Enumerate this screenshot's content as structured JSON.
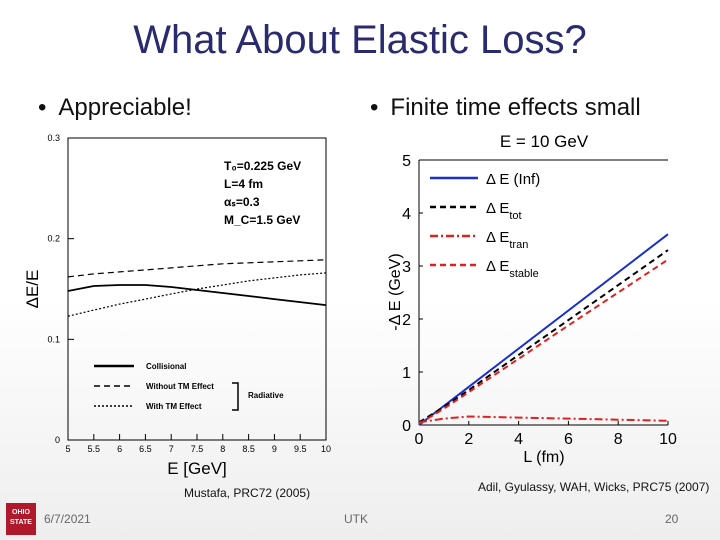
{
  "slide": {
    "title": "What About Elastic Loss?",
    "bullet_left": "Appreciable!",
    "bullet_right": "Finite time effects small",
    "cite_left": "Mustafa, PRC72 (2005)",
    "cite_right": "Adil, Gyulassy, WAH, Wicks, PRC75 (2007)",
    "footer_date": "6/7/2021",
    "footer_center": "UTK",
    "footer_page": "20",
    "logo_text": [
      "OHIO",
      "STATE"
    ]
  },
  "chart_data": [
    {
      "type": "line",
      "xlabel": "E [GeV]",
      "ylabel": "ΔE/E",
      "xlim": [
        5,
        10
      ],
      "ylim": [
        0,
        0.3
      ],
      "x_ticks": [
        "5",
        "5.5",
        "6",
        "6.5",
        "7",
        "7.5",
        "8",
        "8.5",
        "9",
        "9.5",
        "10"
      ],
      "y_ticks": [
        "0",
        "0.1",
        "0.2",
        "0.3"
      ],
      "params": [
        "T₀=0.225 GeV",
        "L=4 fm",
        "αₛ=0.3",
        "M_C=1.5 GeV"
      ],
      "legend": [
        "Collisional",
        "Without TM Effect",
        "With TM Effect"
      ],
      "legend_group_label": "Radiative",
      "series": [
        {
          "name": "Collisional",
          "style": "solid",
          "color": "#000000",
          "x": [
            5,
            5.5,
            6,
            6.5,
            7,
            7.5,
            8,
            8.5,
            9,
            9.5,
            10
          ],
          "y": [
            0.148,
            0.153,
            0.154,
            0.154,
            0.152,
            0.149,
            0.146,
            0.143,
            0.14,
            0.137,
            0.134
          ]
        },
        {
          "name": "Without TM Effect",
          "style": "dashed",
          "color": "#000000",
          "x": [
            5,
            5.5,
            6,
            6.5,
            7,
            7.5,
            8,
            8.5,
            9,
            9.5,
            10
          ],
          "y": [
            0.162,
            0.165,
            0.167,
            0.169,
            0.171,
            0.173,
            0.175,
            0.176,
            0.177,
            0.178,
            0.179
          ]
        },
        {
          "name": "With TM Effect",
          "style": "dotted",
          "color": "#000000",
          "x": [
            5,
            5.5,
            6,
            6.5,
            7,
            7.5,
            8,
            8.5,
            9,
            9.5,
            10
          ],
          "y": [
            0.123,
            0.129,
            0.135,
            0.14,
            0.145,
            0.15,
            0.154,
            0.158,
            0.161,
            0.164,
            0.166
          ]
        }
      ]
    },
    {
      "type": "line",
      "title": "E = 10 GeV",
      "xlabel": "L (fm)",
      "ylabel": "-Δ E (GeV)",
      "xlim": [
        0,
        10
      ],
      "ylim": [
        0,
        5
      ],
      "x_ticks": [
        "0",
        "2",
        "4",
        "6",
        "8",
        "10"
      ],
      "y_ticks": [
        "0",
        "1",
        "2",
        "3",
        "4",
        "5"
      ],
      "legend": [
        {
          "main": "Δ E",
          "suffix": "(Inf)",
          "sub": ""
        },
        {
          "main": "Δ E",
          "suffix": "",
          "sub": "tot"
        },
        {
          "main": "Δ E",
          "suffix": "",
          "sub": "tran"
        },
        {
          "main": "Δ E",
          "suffix": "",
          "sub": "stable"
        }
      ],
      "series": [
        {
          "name": "Δ E (Inf)",
          "style": "solid",
          "color": "#1a2ecc",
          "x": [
            0,
            10
          ],
          "y": [
            0,
            3.6
          ]
        },
        {
          "name": "Δ E tot",
          "style": "dashed",
          "color": "#000000",
          "x": [
            0,
            1,
            2,
            4,
            6,
            8,
            10
          ],
          "y": [
            0.05,
            0.34,
            0.66,
            1.32,
            1.98,
            2.64,
            3.3
          ]
        },
        {
          "name": "Δ E tran",
          "style": "dashdot",
          "color": "#e02020",
          "x": [
            0,
            1,
            2,
            4,
            6,
            8,
            10
          ],
          "y": [
            0.05,
            0.12,
            0.16,
            0.14,
            0.12,
            0.1,
            0.08
          ]
        },
        {
          "name": "Δ E stable",
          "style": "dashed",
          "color": "#e02020",
          "x": [
            0,
            1,
            2,
            4,
            6,
            8,
            10
          ],
          "y": [
            0.02,
            0.31,
            0.62,
            1.25,
            1.88,
            2.5,
            3.12
          ]
        }
      ]
    }
  ]
}
